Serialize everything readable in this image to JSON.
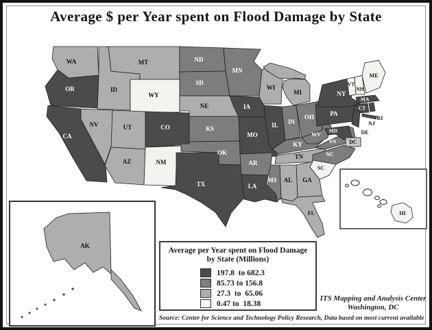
{
  "title": "Average $ per Year spent on Flood Damage by State",
  "legend": {
    "title_line1": "Average per Year spent on Flood Damage",
    "title_line2": "by State (Millions)",
    "classes": [
      {
        "range": "197.8  to 682.3",
        "color": "#4b4b4b",
        "label_color": "#ffffff"
      },
      {
        "range": "85.73 to 156.8",
        "color": "#7d7d7d",
        "label_color": "#ffffff"
      },
      {
        "range": "27.3  to  65.06",
        "color": "#aeaeae",
        "label_color": "#141414"
      },
      {
        "range": "0.47 to  18.38",
        "color": "#f4f3f0",
        "label_color": "#141414"
      }
    ]
  },
  "credits": {
    "line1": "ITS Mapping and Analysis Center",
    "line2": "Washington, DC"
  },
  "source": "Source: Center for Science and Technology Policy Research, Data based on most current available",
  "map": {
    "dc": {
      "label": "DC",
      "box_fill": "#c9c9c9"
    },
    "states": [
      {
        "abbr": "WA",
        "class": 3
      },
      {
        "abbr": "OR",
        "class": 1
      },
      {
        "abbr": "CA",
        "class": 1
      },
      {
        "abbr": "ID",
        "class": 3
      },
      {
        "abbr": "MT",
        "class": 3
      },
      {
        "abbr": "WY",
        "class": 4
      },
      {
        "abbr": "NV",
        "class": 3
      },
      {
        "abbr": "UT",
        "class": 3
      },
      {
        "abbr": "CO",
        "class": 1
      },
      {
        "abbr": "AZ",
        "class": 3
      },
      {
        "abbr": "NM",
        "class": 4
      },
      {
        "abbr": "ND",
        "class": 2
      },
      {
        "abbr": "SD",
        "class": 2
      },
      {
        "abbr": "NE",
        "class": 3
      },
      {
        "abbr": "KS",
        "class": 2
      },
      {
        "abbr": "OK",
        "class": 2
      },
      {
        "abbr": "TX",
        "class": 1
      },
      {
        "abbr": "MN",
        "class": 2
      },
      {
        "abbr": "WI",
        "class": 3
      },
      {
        "abbr": "IA",
        "class": 1
      },
      {
        "abbr": "MO",
        "class": 1
      },
      {
        "abbr": "IL",
        "class": 1
      },
      {
        "abbr": "IN",
        "class": 2
      },
      {
        "abbr": "OH",
        "class": 2
      },
      {
        "abbr": "MI",
        "class": 3
      },
      {
        "abbr": "KY",
        "class": 2
      },
      {
        "abbr": "TN",
        "class": 3
      },
      {
        "abbr": "WV",
        "class": 2
      },
      {
        "abbr": "VA",
        "class": 2
      },
      {
        "abbr": "NC",
        "class": 2
      },
      {
        "abbr": "SC",
        "class": 4
      },
      {
        "abbr": "GA",
        "class": 3
      },
      {
        "abbr": "AL",
        "class": 3
      },
      {
        "abbr": "MS",
        "class": 2
      },
      {
        "abbr": "AR",
        "class": 2
      },
      {
        "abbr": "LA",
        "class": 1
      },
      {
        "abbr": "FL",
        "class": 3
      },
      {
        "abbr": "PA",
        "class": 1
      },
      {
        "abbr": "NY",
        "class": 1
      },
      {
        "abbr": "VT",
        "class": 4
      },
      {
        "abbr": "NH",
        "class": 4
      },
      {
        "abbr": "ME",
        "class": 4
      },
      {
        "abbr": "MA",
        "class": 1
      },
      {
        "abbr": "CT",
        "class": 1
      },
      {
        "abbr": "RI",
        "class": 1
      },
      {
        "abbr": "NJ",
        "class": 1
      },
      {
        "abbr": "DE",
        "class": 2
      },
      {
        "abbr": "MD",
        "class": 1
      },
      {
        "abbr": "AK",
        "class": 3
      },
      {
        "abbr": "HI",
        "class": 4
      }
    ]
  }
}
